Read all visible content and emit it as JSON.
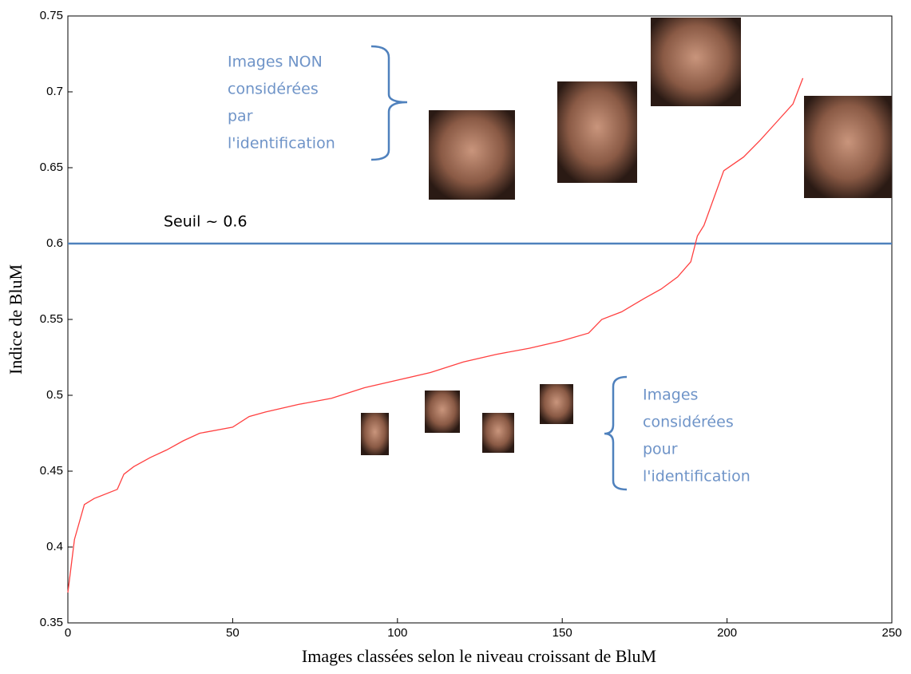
{
  "chart_data": {
    "type": "line",
    "x": [
      0,
      2,
      5,
      8,
      15,
      17,
      20,
      25,
      30,
      35,
      40,
      50,
      55,
      60,
      70,
      80,
      90,
      100,
      110,
      120,
      130,
      140,
      150,
      158,
      162,
      168,
      175,
      180,
      185,
      189,
      191,
      193,
      196,
      199,
      205,
      210,
      215,
      220,
      223
    ],
    "values": [
      0.37,
      0.405,
      0.428,
      0.432,
      0.438,
      0.448,
      0.453,
      0.459,
      0.464,
      0.47,
      0.475,
      0.479,
      0.486,
      0.489,
      0.494,
      0.498,
      0.505,
      0.51,
      0.515,
      0.522,
      0.527,
      0.531,
      0.536,
      0.541,
      0.55,
      0.555,
      0.564,
      0.57,
      0.578,
      0.588,
      0.605,
      0.612,
      0.63,
      0.648,
      0.657,
      0.668,
      0.68,
      0.692,
      0.709
    ],
    "color": "#ff4040",
    "xlabel": "Images classées selon le niveau croissant de BluM",
    "ylabel": "Indice de BluM",
    "xlim": [
      0,
      250
    ],
    "xticks": [
      0,
      50,
      100,
      150,
      200,
      250
    ],
    "ylim": [
      0.35,
      0.75
    ],
    "yticks": [
      0.35,
      0.4,
      0.45,
      0.5,
      0.55,
      0.6,
      0.65,
      0.7,
      0.75
    ],
    "threshold": 0.6,
    "threshold_color": "#4f81bd",
    "threshold_label": "Seuil ~ 0.6",
    "annotation_top": [
      "Images NON",
      "considérées",
      "par",
      "l'identification"
    ],
    "annotation_bottom": [
      "Images",
      "considérées",
      "pour",
      "l'identification"
    ]
  }
}
